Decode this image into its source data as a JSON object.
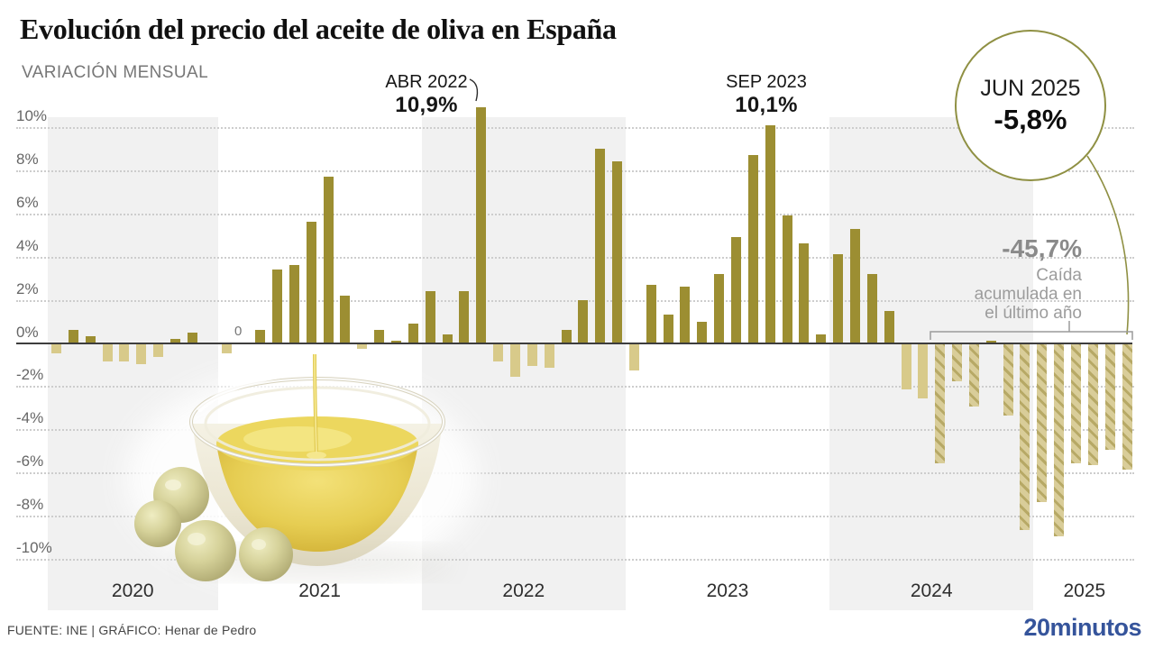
{
  "header": {
    "title": "Evolución del precio del aceite de oliva en España",
    "subtitle": "VARIACIÓN MENSUAL"
  },
  "annotations": {
    "apr2022": {
      "label": "ABR 2022",
      "value": "10,9%"
    },
    "sep2023": {
      "label": "SEP 2023",
      "value": "10,1%"
    },
    "jun2025": {
      "label": "JUN 2025",
      "value": "-5,8%"
    },
    "accumulated": {
      "value": "-45,7%",
      "caption": [
        "Caída",
        "acumulada en",
        "el último año"
      ]
    },
    "zero_marker": "0"
  },
  "footer": {
    "source": "FUENTE: INE  |  GRÁFICO: Henar de Pedro",
    "brand": "20minutos"
  },
  "colors": {
    "positive_bar": "#9c8e32",
    "negative_bar": "#d8ca8a",
    "hatch_base": "#d9cd99",
    "hatch_stripe": "#b7a966",
    "callout_stroke": "#8f9043",
    "brand_blue": "#35549b"
  },
  "chart_data": {
    "type": "bar",
    "title": "Evolución del precio del aceite de oliva en España",
    "ylabel": "Variación mensual (%)",
    "unit": "%",
    "ylim": [
      -10,
      10
    ],
    "yticks": [
      10,
      8,
      6,
      4,
      2,
      0,
      -2,
      -4,
      -6,
      -8,
      -10
    ],
    "grid": "dotted",
    "highlight_last_12_months": {
      "from": "JUL 2024",
      "to": "JUN 2025",
      "style": "hatched",
      "accumulated_change_pct": -45.7
    },
    "labeled_points": [
      {
        "month": "ABR 2022",
        "value": 10.9
      },
      {
        "month": "SEP 2023",
        "value": 10.1
      },
      {
        "month": "JUN 2025",
        "value": -5.8
      }
    ],
    "series": [
      {
        "name": "Variación mensual del precio del aceite de oliva",
        "points": [
          {
            "month": "MAR",
            "year": 2020,
            "value": -0.4
          },
          {
            "month": "ABR",
            "year": 2020,
            "value": 0.6
          },
          {
            "month": "MAY",
            "year": 2020,
            "value": 0.3
          },
          {
            "month": "JUN",
            "year": 2020,
            "value": -0.8
          },
          {
            "month": "JUL",
            "year": 2020,
            "value": -0.8
          },
          {
            "month": "AGO",
            "year": 2020,
            "value": -0.9
          },
          {
            "month": "SEP",
            "year": 2020,
            "value": -0.6
          },
          {
            "month": "OCT",
            "year": 2020,
            "value": 0.2
          },
          {
            "month": "NOV",
            "year": 2020,
            "value": 0.5
          },
          {
            "month": "DIC",
            "year": 2020,
            "value": 0.0
          },
          {
            "month": "ENE",
            "year": 2021,
            "value": -0.4
          },
          {
            "month": "FEB",
            "year": 2021,
            "value": 0.0
          },
          {
            "month": "MAR",
            "year": 2021,
            "value": 0.6
          },
          {
            "month": "ABR",
            "year": 2021,
            "value": 3.4
          },
          {
            "month": "MAY",
            "year": 2021,
            "value": 3.6
          },
          {
            "month": "JUN",
            "year": 2021,
            "value": 5.6
          },
          {
            "month": "JUL",
            "year": 2021,
            "value": 7.7
          },
          {
            "month": "AGO",
            "year": 2021,
            "value": 2.2
          },
          {
            "month": "SEP",
            "year": 2021,
            "value": -0.2
          },
          {
            "month": "OCT",
            "year": 2021,
            "value": 0.6
          },
          {
            "month": "NOV",
            "year": 2021,
            "value": 0.1
          },
          {
            "month": "DIC",
            "year": 2021,
            "value": 0.9
          },
          {
            "month": "ENE",
            "year": 2022,
            "value": 2.4
          },
          {
            "month": "FEB",
            "year": 2022,
            "value": 0.4
          },
          {
            "month": "MAR",
            "year": 2022,
            "value": 2.4
          },
          {
            "month": "ABR",
            "year": 2022,
            "value": 10.9
          },
          {
            "month": "MAY",
            "year": 2022,
            "value": -0.8
          },
          {
            "month": "JUN",
            "year": 2022,
            "value": -1.5
          },
          {
            "month": "JUL",
            "year": 2022,
            "value": -1.0
          },
          {
            "month": "AGO",
            "year": 2022,
            "value": -1.1
          },
          {
            "month": "SEP",
            "year": 2022,
            "value": 0.6
          },
          {
            "month": "OCT",
            "year": 2022,
            "value": 2.0
          },
          {
            "month": "NOV",
            "year": 2022,
            "value": 9.0
          },
          {
            "month": "DIC",
            "year": 2022,
            "value": 8.4
          },
          {
            "month": "ENE",
            "year": 2023,
            "value": -1.2
          },
          {
            "month": "FEB",
            "year": 2023,
            "value": 2.7
          },
          {
            "month": "MAR",
            "year": 2023,
            "value": 1.3
          },
          {
            "month": "ABR",
            "year": 2023,
            "value": 2.6
          },
          {
            "month": "MAY",
            "year": 2023,
            "value": 1.0
          },
          {
            "month": "JUN",
            "year": 2023,
            "value": 3.2
          },
          {
            "month": "JUL",
            "year": 2023,
            "value": 4.9
          },
          {
            "month": "AGO",
            "year": 2023,
            "value": 8.7
          },
          {
            "month": "SEP",
            "year": 2023,
            "value": 10.1
          },
          {
            "month": "OCT",
            "year": 2023,
            "value": 5.9
          },
          {
            "month": "NOV",
            "year": 2023,
            "value": 4.6
          },
          {
            "month": "DIC",
            "year": 2023,
            "value": 0.4
          },
          {
            "month": "ENE",
            "year": 2024,
            "value": 4.1
          },
          {
            "month": "FEB",
            "year": 2024,
            "value": 5.3
          },
          {
            "month": "MAR",
            "year": 2024,
            "value": 3.2
          },
          {
            "month": "ABR",
            "year": 2024,
            "value": 1.5
          },
          {
            "month": "MAY",
            "year": 2024,
            "value": -2.1
          },
          {
            "month": "JUN",
            "year": 2024,
            "value": -2.5
          },
          {
            "month": "JUL",
            "year": 2024,
            "value": -5.5
          },
          {
            "month": "AGO",
            "year": 2024,
            "value": -1.7
          },
          {
            "month": "SEP",
            "year": 2024,
            "value": -2.9
          },
          {
            "month": "OCT",
            "year": 2024,
            "value": 0.1
          },
          {
            "month": "NOV",
            "year": 2024,
            "value": -3.3
          },
          {
            "month": "DIC",
            "year": 2024,
            "value": -8.6
          },
          {
            "month": "ENE",
            "year": 2025,
            "value": -7.3
          },
          {
            "month": "FEB",
            "year": 2025,
            "value": -8.9
          },
          {
            "month": "MAR",
            "year": 2025,
            "value": -5.5
          },
          {
            "month": "ABR",
            "year": 2025,
            "value": -5.6
          },
          {
            "month": "MAY",
            "year": 2025,
            "value": -4.9
          },
          {
            "month": "JUN",
            "year": 2025,
            "value": -5.8
          }
        ]
      }
    ]
  }
}
